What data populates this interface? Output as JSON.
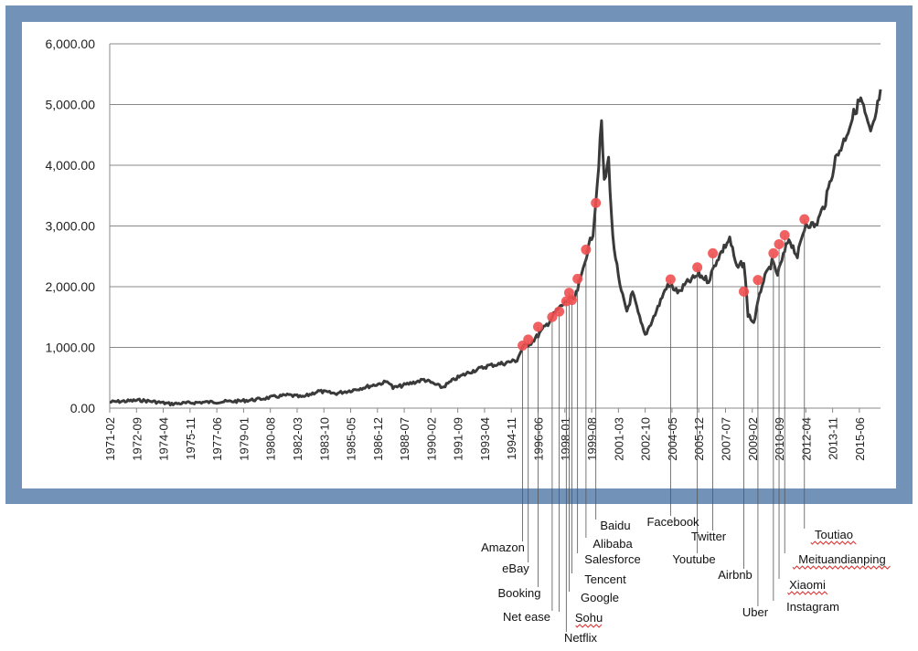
{
  "chart_data": {
    "type": "line",
    "title": "",
    "xlabel": "",
    "ylabel": "",
    "ylim": [
      0,
      6000
    ],
    "yticks": [
      "0.00",
      "1,000.00",
      "2,000.00",
      "3,000.00",
      "4,000.00",
      "5,000.00",
      "6,000.00"
    ],
    "grid": true,
    "xticks": [
      "1971-02",
      "1972-09",
      "1974-04",
      "1975-11",
      "1977-06",
      "1979-01",
      "1980-08",
      "1982-03",
      "1983-10",
      "1985-05",
      "1986-12",
      "1988-07",
      "1990-02",
      "1991-09",
      "1993-04",
      "1994-11",
      "1996-06",
      "1998-01",
      "1999-08",
      "2001-03",
      "2002-10",
      "2004-05",
      "2005-12",
      "2007-07",
      "2009-02",
      "2010-09",
      "2012-04",
      "2013-11",
      "2015-06"
    ],
    "series": [
      {
        "name": "",
        "color": "#3a3a3a",
        "points": [
          [
            "1971-02",
            100
          ],
          [
            "1972-01",
            115
          ],
          [
            "1972-12",
            130
          ],
          [
            "1973-10",
            105
          ],
          [
            "1974-09",
            70
          ],
          [
            "1975-06",
            80
          ],
          [
            "1976-06",
            95
          ],
          [
            "1977-09",
            105
          ],
          [
            "1978-09",
            115
          ],
          [
            "1979-10",
            140
          ],
          [
            "1980-12",
            190
          ],
          [
            "1981-09",
            215
          ],
          [
            "1982-07",
            180
          ],
          [
            "1983-06",
            280
          ],
          [
            "1984-06",
            240
          ],
          [
            "1985-05",
            290
          ],
          [
            "1986-06",
            360
          ],
          [
            "1987-08",
            440
          ],
          [
            "1987-11",
            330
          ],
          [
            "1988-07",
            380
          ],
          [
            "1989-09",
            470
          ],
          [
            "1990-10",
            340
          ],
          [
            "1991-07",
            480
          ],
          [
            "1992-06",
            600
          ],
          [
            "1993-07",
            700
          ],
          [
            "1994-06",
            740
          ],
          [
            "1995-03",
            790
          ],
          [
            "1995-07",
            1000
          ],
          [
            "1996-01",
            1080
          ],
          [
            "1996-06",
            1200
          ],
          [
            "1997-01",
            1400
          ],
          [
            "1997-07",
            1600
          ],
          [
            "1998-03",
            1780
          ],
          [
            "1998-08",
            1800
          ],
          [
            "1998-12",
            2100
          ],
          [
            "1999-04",
            2500
          ],
          [
            "1999-09",
            2900
          ],
          [
            "1999-12",
            3700
          ],
          [
            "2000-03",
            4700
          ],
          [
            "2000-05",
            3700
          ],
          [
            "2000-08",
            4100
          ],
          [
            "2000-11",
            2800
          ],
          [
            "2001-04",
            2000
          ],
          [
            "2001-09",
            1600
          ],
          [
            "2002-01",
            1900
          ],
          [
            "2002-07",
            1400
          ],
          [
            "2002-10",
            1200
          ],
          [
            "2003-06",
            1600
          ],
          [
            "2004-01",
            2000
          ],
          [
            "2004-05",
            2000
          ],
          [
            "2004-10",
            1900
          ],
          [
            "2005-03",
            2050
          ],
          [
            "2005-12",
            2200
          ],
          [
            "2006-07",
            2100
          ],
          [
            "2007-01",
            2450
          ],
          [
            "2007-10",
            2800
          ],
          [
            "2008-03",
            2300
          ],
          [
            "2008-08",
            2400
          ],
          [
            "2008-11",
            1550
          ],
          [
            "2009-03",
            1400
          ],
          [
            "2009-09",
            2050
          ],
          [
            "2010-04",
            2400
          ],
          [
            "2010-08",
            2200
          ],
          [
            "2011-04",
            2800
          ],
          [
            "2011-10",
            2500
          ],
          [
            "2012-04",
            3050
          ],
          [
            "2012-11",
            3000
          ],
          [
            "2013-06",
            3400
          ],
          [
            "2014-01",
            4100
          ],
          [
            "2014-07",
            4400
          ],
          [
            "2015-03",
            4900
          ],
          [
            "2015-07",
            5100
          ],
          [
            "2016-02",
            4500
          ],
          [
            "2016-06",
            4850
          ],
          [
            "2016-09",
            5250
          ]
        ]
      }
    ],
    "events": [
      {
        "label": "Amazon",
        "date": "1995-07",
        "value": 1030
      },
      {
        "label": "eBay",
        "date": "1995-11",
        "value": 1130
      },
      {
        "label": "Booking",
        "date": "1996-06",
        "value": 1340
      },
      {
        "label": "Net ease",
        "date": "1997-04",
        "value": 1500
      },
      {
        "label": "Sohu",
        "date": "1997-09",
        "value": 1590
      },
      {
        "label": "Netflix",
        "date": "1998-02",
        "value": 1760
      },
      {
        "label": "Google",
        "date": "1998-04",
        "value": 1900
      },
      {
        "label": "Tencent",
        "date": "1998-06",
        "value": 1780
      },
      {
        "label": "Salesforce",
        "date": "1998-10",
        "value": 2130
      },
      {
        "label": "Alibaba",
        "date": "1999-04",
        "value": 2610
      },
      {
        "label": "Baidu",
        "date": "1999-11",
        "value": 3380
      },
      {
        "label": "Facebook",
        "date": "2004-04",
        "value": 2120
      },
      {
        "label": "Youtube",
        "date": "2005-11",
        "value": 2320
      },
      {
        "label": "Twitter",
        "date": "2006-10",
        "value": 2550
      },
      {
        "label": "Airbnb",
        "date": "2008-08",
        "value": 1920
      },
      {
        "label": "Uber",
        "date": "2009-06",
        "value": 2110
      },
      {
        "label": "Instagram",
        "date": "2010-05",
        "value": 2550
      },
      {
        "label": "Xiaomi",
        "date": "2010-09",
        "value": 2700
      },
      {
        "label": "Meituandianping",
        "date": "2011-01",
        "value": 2850
      },
      {
        "label": "Toutiao",
        "date": "2012-03",
        "value": 3110
      }
    ],
    "colors": {
      "frame": "#7392b8",
      "line": "#3a3a3a",
      "marker": "#f05050",
      "grid": "#888888"
    }
  }
}
